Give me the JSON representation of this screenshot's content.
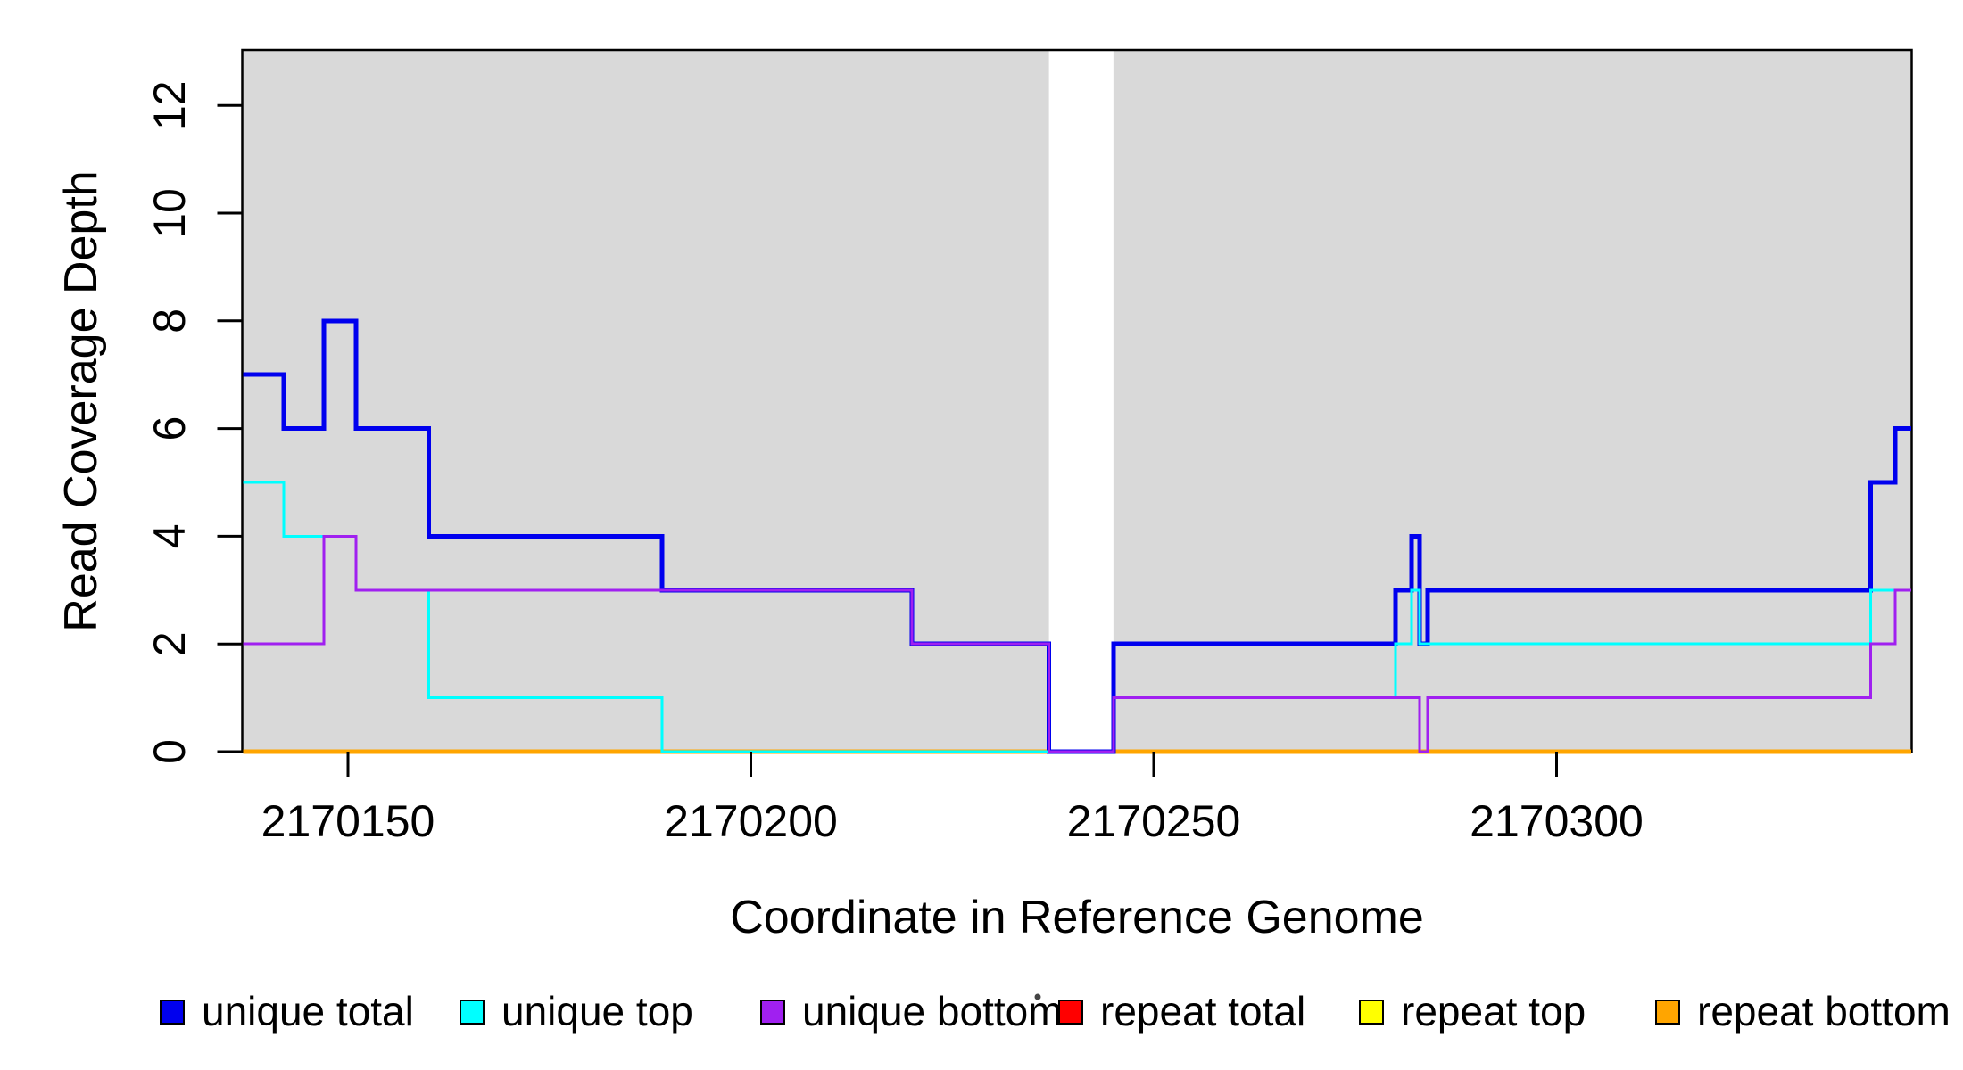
{
  "chart_data": {
    "type": "line",
    "subtype": "step-coverage-plot",
    "title": "",
    "xlabel": "Coordinate in Reference Genome",
    "ylabel": "Read Coverage Depth",
    "grid": false,
    "x_range": [
      2170137,
      2170344
    ],
    "y_range": [
      0,
      13
    ],
    "x_ticks": [
      {
        "value": 2170150,
        "label": "2170150"
      },
      {
        "value": 2170200,
        "label": "2170200"
      },
      {
        "value": 2170250,
        "label": "2170250"
      },
      {
        "value": 2170300,
        "label": "2170300"
      }
    ],
    "y_ticks": [
      {
        "value": 0,
        "label": "0"
      },
      {
        "value": 2,
        "label": "2"
      },
      {
        "value": 4,
        "label": "4"
      },
      {
        "value": 6,
        "label": "6"
      },
      {
        "value": 8,
        "label": "8"
      },
      {
        "value": 10,
        "label": "10"
      },
      {
        "value": 12,
        "label": "12"
      }
    ],
    "plot_background": {
      "color": "#d9d9d9",
      "zero_coverage_gap": [
        2170237,
        2170245
      ]
    },
    "series": [
      {
        "name": "repeat total",
        "color": "#ff0000",
        "width": 5,
        "steps": [
          [
            2170137,
            0
          ],
          [
            2170344,
            0
          ]
        ]
      },
      {
        "name": "repeat top",
        "color": "#ffff00",
        "width": 5,
        "steps": [
          [
            2170137,
            0
          ],
          [
            2170344,
            0
          ]
        ]
      },
      {
        "name": "repeat bottom",
        "color": "#ffa500",
        "width": 5,
        "steps": [
          [
            2170137,
            0
          ],
          [
            2170344,
            0
          ]
        ]
      },
      {
        "name": "unique total",
        "color": "#0000ee",
        "width": 5,
        "steps": [
          [
            2170137,
            7
          ],
          [
            2170142,
            6
          ],
          [
            2170147,
            8
          ],
          [
            2170151,
            6
          ],
          [
            2170160,
            4
          ],
          [
            2170189,
            3
          ],
          [
            2170220,
            2
          ],
          [
            2170237,
            0
          ],
          [
            2170245,
            2
          ],
          [
            2170280,
            3
          ],
          [
            2170282,
            4
          ],
          [
            2170283,
            2
          ],
          [
            2170284,
            3
          ],
          [
            2170339,
            5
          ],
          [
            2170342,
            6
          ],
          [
            2170344,
            6
          ]
        ]
      },
      {
        "name": "unique top",
        "color": "#00ffff",
        "width": 3,
        "steps": [
          [
            2170137,
            5
          ],
          [
            2170142,
            4
          ],
          [
            2170151,
            3
          ],
          [
            2170160,
            1
          ],
          [
            2170189,
            0
          ],
          [
            2170245,
            1
          ],
          [
            2170280,
            2
          ],
          [
            2170282,
            3
          ],
          [
            2170283,
            2
          ],
          [
            2170339,
            3
          ],
          [
            2170344,
            3
          ]
        ]
      },
      {
        "name": "unique bottom",
        "color": "#a020f0",
        "width": 3,
        "steps": [
          [
            2170137,
            2
          ],
          [
            2170147,
            4
          ],
          [
            2170151,
            3
          ],
          [
            2170220,
            2
          ],
          [
            2170237,
            0
          ],
          [
            2170245,
            1
          ],
          [
            2170283,
            0
          ],
          [
            2170284,
            1
          ],
          [
            2170339,
            2
          ],
          [
            2170342,
            3
          ],
          [
            2170344,
            3
          ]
        ]
      }
    ],
    "legend": {
      "position": "bottom",
      "entries": [
        {
          "label": "unique total",
          "color": "#0000ee"
        },
        {
          "label": "unique top",
          "color": "#00ffff"
        },
        {
          "label": "unique bottom",
          "color": "#a020f0"
        },
        {
          "label": "repeat total",
          "color": "#ff0000"
        },
        {
          "label": "repeat top",
          "color": "#ffff00"
        },
        {
          "label": "repeat bottom",
          "color": "#ffa500"
        }
      ]
    },
    "decorations": {
      "stray_dot": "tiny dark speck above-left of the repeat total legend swatch"
    }
  }
}
